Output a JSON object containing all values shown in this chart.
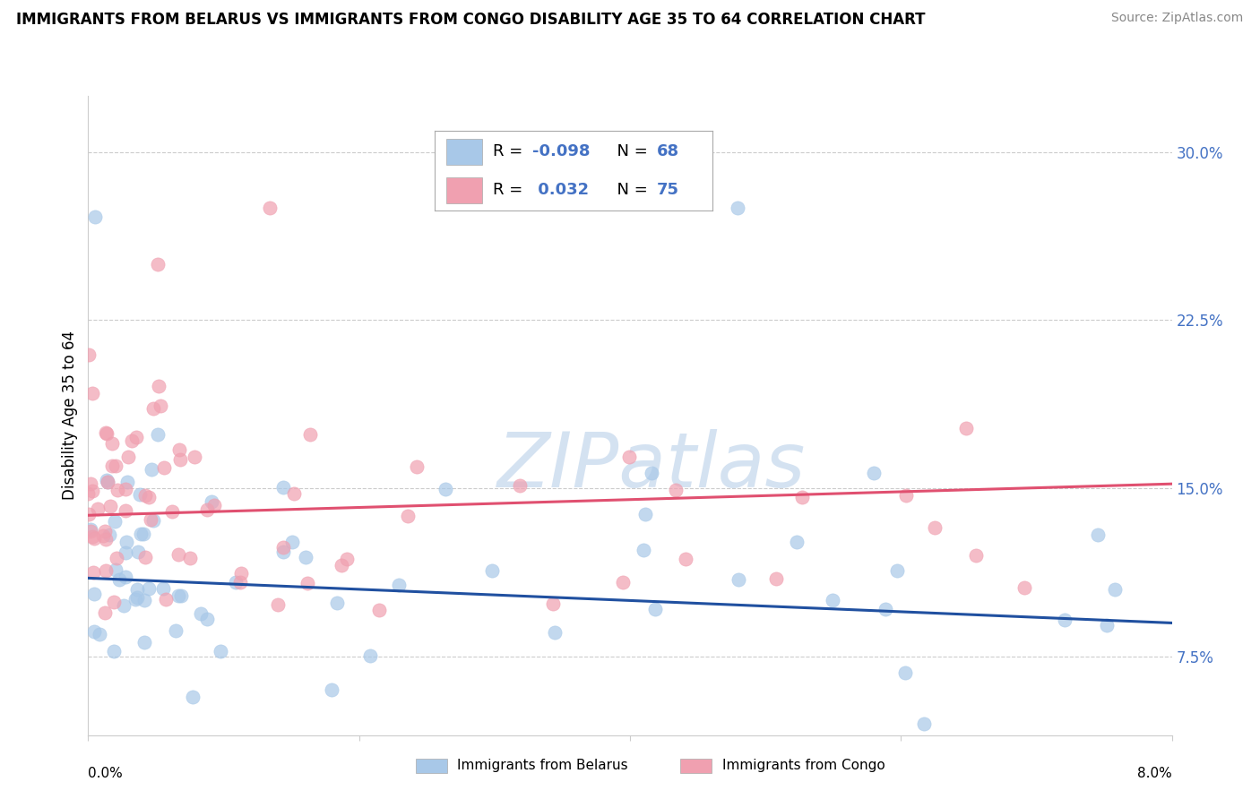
{
  "title": "IMMIGRANTS FROM BELARUS VS IMMIGRANTS FROM CONGO DISABILITY AGE 35 TO 64 CORRELATION CHART",
  "source": "Source: ZipAtlas.com",
  "ylabel": "Disability Age 35 to 64",
  "legend_label_blue": "Immigrants from Belarus",
  "legend_label_pink": "Immigrants from Congo",
  "R_blue": -0.098,
  "N_blue": 68,
  "R_pink": 0.032,
  "N_pink": 75,
  "xlim": [
    0.0,
    8.0
  ],
  "ylim": [
    4.0,
    32.5
  ],
  "yticks": [
    7.5,
    15.0,
    22.5,
    30.0
  ],
  "xticks": [
    0.0,
    2.0,
    4.0,
    6.0,
    8.0
  ],
  "color_blue": "#A8C8E8",
  "color_pink": "#F0A0B0",
  "color_blue_line": "#2050A0",
  "color_pink_line": "#E05070",
  "watermark_text": "ZIPatlas",
  "background_color": "#FFFFFF",
  "grid_color": "#CCCCCC",
  "ytick_color": "#4472C4"
}
